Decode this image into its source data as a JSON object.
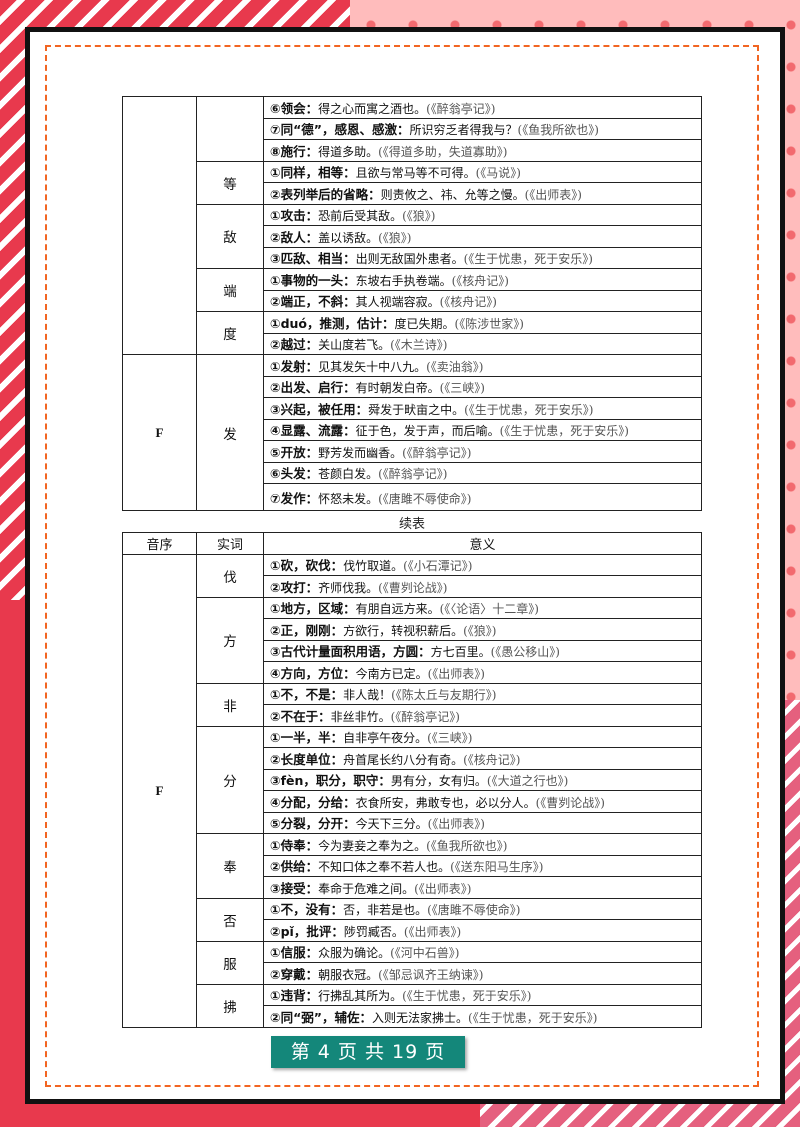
{
  "colors": {
    "accent": "#e8394d",
    "pink": "#ffbcbc",
    "dash": "#f26522",
    "badge": "#14877a"
  },
  "table1": {
    "groups": [
      {
        "letter": "",
        "words": [
          {
            "word": "",
            "senses": [
              {
                "def": "⑥领会：",
                "ex": "得之心而寓之酒也。",
                "src": "(《醉翁亭记》)"
              },
              {
                "def": "⑦同“德”，感恩、感激：",
                "ex": "所识穷乏者得我与？",
                "src": "(《鱼我所欲也》)"
              },
              {
                "def": "⑧施行：",
                "ex": "得道多助。",
                "src": "(《得道多助，失道寡助》)"
              }
            ]
          },
          {
            "word": "等",
            "senses": [
              {
                "def": "①同样，相等：",
                "ex": "且欲与常马等不可得。",
                "src": "(《马说》)"
              },
              {
                "def": "②表列举后的省略：",
                "ex": "则责攸之、祎、允等之慢。",
                "src": "(《出师表》)"
              }
            ]
          },
          {
            "word": "敌",
            "senses": [
              {
                "def": "①攻击：",
                "ex": "恐前后受其敌。",
                "src": "(《狼》)"
              },
              {
                "def": "②敌人：",
                "ex": "盖以诱敌。",
                "src": "(《狼》)"
              },
              {
                "def": "③匹敌、相当：",
                "ex": "出则无敌国外患者。",
                "src": "(《生于忧患，死于安乐》)"
              }
            ]
          },
          {
            "word": "端",
            "senses": [
              {
                "def": "①事物的一头：",
                "ex": "东坡右手执卷端。",
                "src": "(《核舟记》)"
              },
              {
                "def": "②端正，不斜：",
                "ex": "其人视端容寂。",
                "src": "(《核舟记》)"
              }
            ]
          },
          {
            "word": "度",
            "senses": [
              {
                "def": "①duó，推测，估计：",
                "ex": "度已失期。",
                "src": "(《陈涉世家》)"
              },
              {
                "def": "②越过：",
                "ex": "关山度若飞。",
                "src": "(《木兰诗》)"
              }
            ]
          }
        ]
      },
      {
        "letter": "F",
        "words": [
          {
            "word": "发",
            "senses": [
              {
                "def": "①发射：",
                "ex": "见其发矢十中八九。",
                "src": "(《卖油翁》)"
              },
              {
                "def": "②出发、启行：",
                "ex": "有时朝发白帝。",
                "src": "(《三峡》)"
              },
              {
                "def": "③兴起，被任用：",
                "ex": "舜发于畎亩之中。",
                "src": "(《生于忧患，死于安乐》)"
              },
              {
                "def": "④显露、流露：",
                "ex": "征于色，发于声，而后喻。",
                "src": "(《生于忧患，死于安乐》)"
              },
              {
                "def": "⑤开放：",
                "ex": "野芳发而幽香。",
                "src": "(《醉翁亭记》)"
              },
              {
                "def": "⑥头发：",
                "ex": "苍颜白发。",
                "src": "(《醉翁亭记》)"
              },
              {
                "def": "⑦发作：",
                "ex": "怀怒未发。",
                "src": "(《唐雎不辱使命》)"
              }
            ]
          }
        ]
      }
    ]
  },
  "continued_label": "续表",
  "table2": {
    "headers": [
      "音序",
      "实词",
      "意义"
    ],
    "groups": [
      {
        "letter": "F",
        "words": [
          {
            "word": "伐",
            "senses": [
              {
                "def": "①砍，砍伐：",
                "ex": "伐竹取道。",
                "src": "(《小石潭记》)"
              },
              {
                "def": "②攻打：",
                "ex": "齐师伐我。",
                "src": "(《曹刿论战》)"
              }
            ]
          },
          {
            "word": "方",
            "senses": [
              {
                "def": "①地方，区域：",
                "ex": "有朋自远方来。",
                "src": "(《〈论语〉十二章》)"
              },
              {
                "def": "②正，刚刚：",
                "ex": "方欲行，转视积薪后。",
                "src": "(《狼》)"
              },
              {
                "def": "③古代计量面积用语，方圆：",
                "ex": "方七百里。",
                "src": "(《愚公移山》)"
              },
              {
                "def": "④方向，方位：",
                "ex": "今南方已定。",
                "src": "(《出师表》)"
              }
            ]
          },
          {
            "word": "非",
            "senses": [
              {
                "def": "①不，不是：",
                "ex": "非人哉！",
                "src": "(《陈太丘与友期行》)"
              },
              {
                "def": "②不在于：",
                "ex": "非丝非竹。",
                "src": "(《醉翁亭记》)"
              }
            ]
          },
          {
            "word": "分",
            "senses": [
              {
                "def": "①一半，半：",
                "ex": "自非亭午夜分。",
                "src": "(《三峡》)"
              },
              {
                "def": "②长度单位：",
                "ex": "舟首尾长约八分有奇。",
                "src": "(《核舟记》)"
              },
              {
                "def": "③fèn，职分，职守：",
                "ex": "男有分，女有归。",
                "src": "(《大道之行也》)"
              },
              {
                "def": "④分配，分给：",
                "ex": "衣食所安，弗敢专也，必以分人。",
                "src": "(《曹刿论战》)"
              },
              {
                "def": "⑤分裂，分开：",
                "ex": "今天下三分。",
                "src": "(《出师表》)"
              }
            ]
          },
          {
            "word": "奉",
            "senses": [
              {
                "def": "①侍奉：",
                "ex": "今为妻妾之奉为之。",
                "src": "(《鱼我所欲也》)"
              },
              {
                "def": "②供给：",
                "ex": "不知口体之奉不若人也。",
                "src": "(《送东阳马生序》)"
              },
              {
                "def": "③接受：",
                "ex": "奉命于危难之间。",
                "src": "(《出师表》)"
              }
            ]
          },
          {
            "word": "否",
            "senses": [
              {
                "def": "①不，没有：",
                "ex": "否，非若是也。",
                "src": "(《唐雎不辱使命》)"
              },
              {
                "def": "②pǐ，批评：",
                "ex": "陟罚臧否。",
                "src": "(《出师表》)"
              }
            ]
          },
          {
            "word": "服",
            "senses": [
              {
                "def": "①信服：",
                "ex": "众服为确论。",
                "src": "(《河中石兽》)"
              },
              {
                "def": "②穿戴：",
                "ex": "朝服衣冠。",
                "src": "(《邹忌讽齐王纳谏》)"
              }
            ]
          },
          {
            "word": "拂",
            "senses": [
              {
                "def": "①违背：",
                "ex": "行拂乱其所为。",
                "src": "(《生于忧患，死于安乐》)"
              },
              {
                "def": "②同“弼”，辅佐：",
                "ex": "入则无法家拂士。",
                "src": "(《生于忧患，死于安乐》)"
              }
            ]
          }
        ]
      }
    ]
  },
  "footer": {
    "page_label": "第 4 页 共 19 页"
  }
}
